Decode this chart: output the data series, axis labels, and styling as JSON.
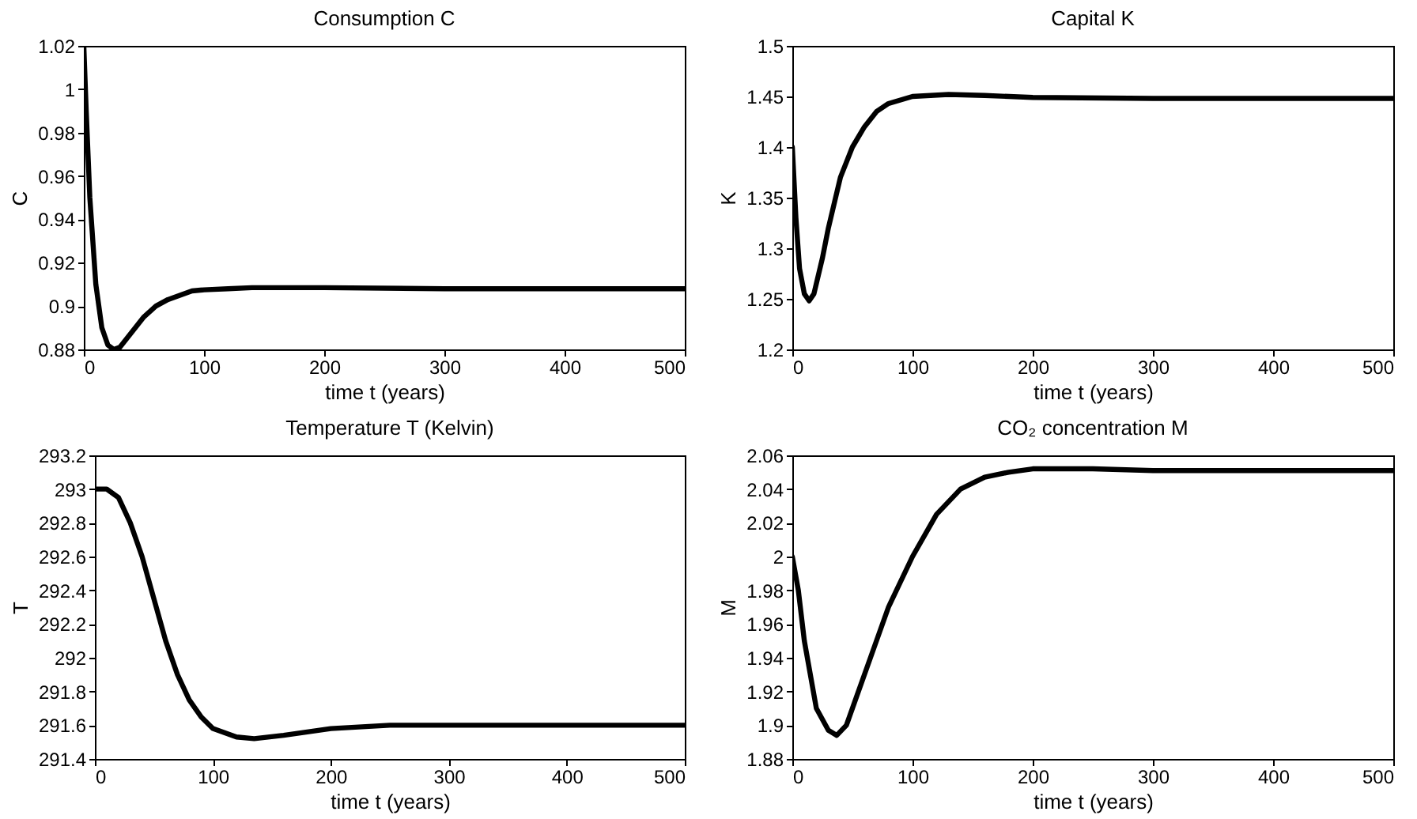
{
  "chart_data": [
    {
      "type": "line",
      "title": "Consumption  C",
      "xlabel": "time  t  (years)",
      "ylabel": "C",
      "xlim": [
        0,
        500
      ],
      "xticks": [
        0,
        100,
        200,
        300,
        400,
        500
      ],
      "ylim": [
        0.88,
        1.02
      ],
      "yticks": [
        0.88,
        0.9,
        0.92,
        0.94,
        0.96,
        0.98,
        1,
        1.02
      ],
      "x": [
        0,
        2,
        5,
        10,
        15,
        20,
        25,
        30,
        40,
        50,
        60,
        70,
        80,
        90,
        100,
        120,
        140,
        200,
        300,
        500
      ],
      "series": [
        {
          "color": "#000000",
          "values": [
            1.02,
            0.99,
            0.95,
            0.91,
            0.89,
            0.882,
            0.88,
            0.881,
            0.888,
            0.895,
            0.9,
            0.903,
            0.905,
            0.907,
            0.9075,
            0.908,
            0.9085,
            0.9085,
            0.908,
            0.908
          ]
        }
      ]
    },
    {
      "type": "line",
      "title": "Capital  K",
      "xlabel": "time  t  (years)",
      "ylabel": "K",
      "xlim": [
        0,
        500
      ],
      "xticks": [
        0,
        100,
        200,
        300,
        400,
        500
      ],
      "ylim": [
        1.2,
        1.5
      ],
      "yticks": [
        1.2,
        1.25,
        1.3,
        1.35,
        1.4,
        1.45,
        1.5
      ],
      "x": [
        0,
        3,
        6,
        10,
        14,
        18,
        25,
        30,
        40,
        50,
        60,
        70,
        80,
        100,
        130,
        160,
        200,
        300,
        500
      ],
      "series": [
        {
          "color": "#000000",
          "values": [
            1.4,
            1.33,
            1.28,
            1.255,
            1.248,
            1.255,
            1.29,
            1.32,
            1.37,
            1.4,
            1.42,
            1.435,
            1.443,
            1.45,
            1.452,
            1.451,
            1.449,
            1.448,
            1.448
          ]
        }
      ]
    },
    {
      "type": "line",
      "title": "Temperature  T  (Kelvin)",
      "xlabel": "time  t  (years)",
      "ylabel": "T",
      "xlim": [
        0,
        500
      ],
      "xticks": [
        0,
        100,
        200,
        300,
        400,
        500
      ],
      "ylim": [
        291.4,
        293.2
      ],
      "yticks": [
        291.4,
        291.6,
        291.8,
        292,
        292.2,
        292.4,
        292.6,
        292.8,
        293,
        293.2
      ],
      "x": [
        0,
        10,
        20,
        30,
        40,
        50,
        60,
        70,
        80,
        90,
        100,
        120,
        135,
        160,
        200,
        250,
        300,
        500
      ],
      "series": [
        {
          "color": "#000000",
          "values": [
            293.0,
            293.0,
            292.95,
            292.8,
            292.6,
            292.35,
            292.1,
            291.9,
            291.75,
            291.65,
            291.58,
            291.53,
            291.52,
            291.54,
            291.58,
            291.6,
            291.6,
            291.6
          ]
        }
      ]
    },
    {
      "type": "line",
      "title": "CO₂ concentration  M",
      "xlabel": "time  t  (years)",
      "ylabel": "M",
      "xlim": [
        0,
        500
      ],
      "xticks": [
        0,
        100,
        200,
        300,
        400,
        500
      ],
      "ylim": [
        1.88,
        2.06
      ],
      "yticks": [
        1.88,
        1.9,
        1.92,
        1.94,
        1.96,
        1.98,
        2,
        2.02,
        2.04,
        2.06
      ],
      "x": [
        0,
        5,
        10,
        20,
        30,
        37,
        45,
        55,
        65,
        80,
        100,
        120,
        140,
        160,
        180,
        200,
        250,
        300,
        500
      ],
      "series": [
        {
          "color": "#000000",
          "values": [
            2.0,
            1.98,
            1.95,
            1.91,
            1.897,
            1.894,
            1.9,
            1.92,
            1.94,
            1.97,
            2.0,
            2.025,
            2.04,
            2.047,
            2.05,
            2.052,
            2.052,
            2.051,
            2.051
          ]
        }
      ]
    }
  ]
}
